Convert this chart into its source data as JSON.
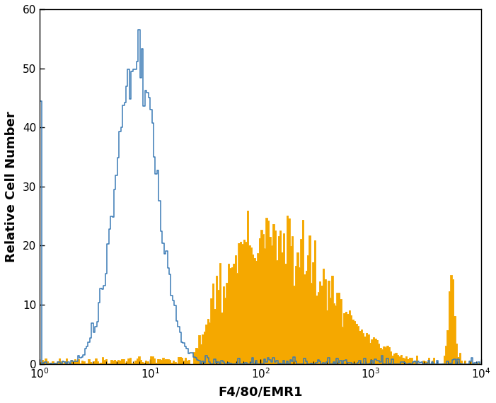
{
  "xlabel": "F4/80/EMR1",
  "ylabel": "Relative Cell Number",
  "xlim": [
    1.0,
    10000.0
  ],
  "ylim": [
    0,
    60
  ],
  "yticks": [
    0,
    10,
    20,
    30,
    40,
    50,
    60
  ],
  "blue_color": "#3a7ab5",
  "orange_color": "#f5a800",
  "background_color": "#ffffff",
  "n_bins": 256
}
